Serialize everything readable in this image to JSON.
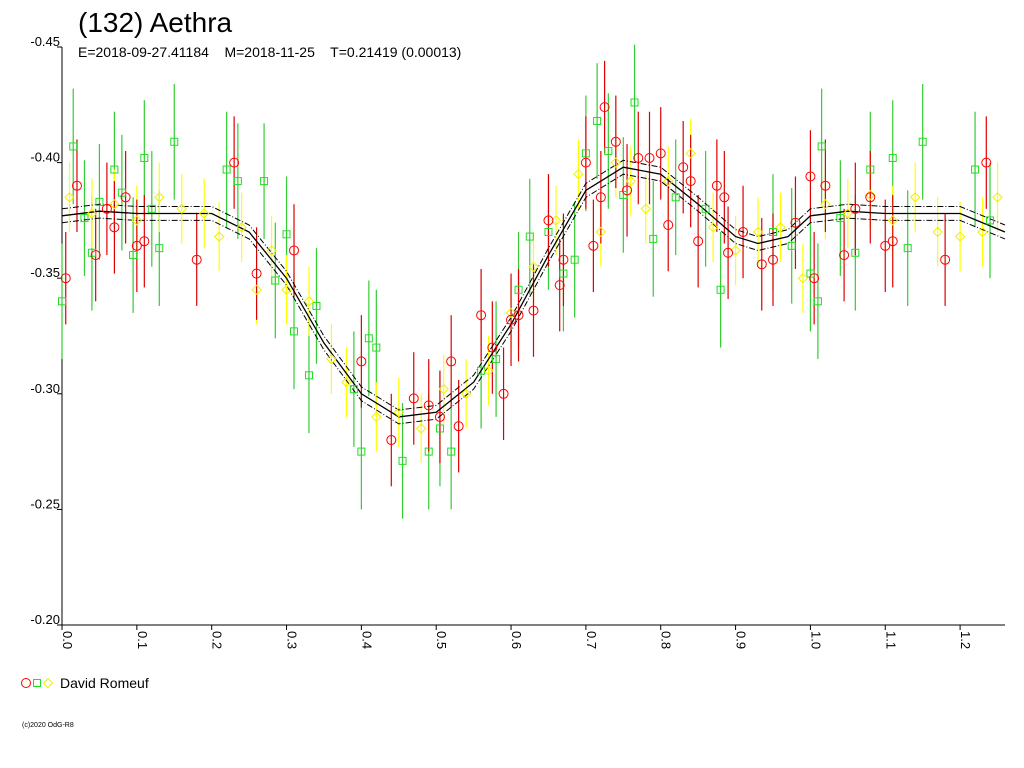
{
  "chart_data": {
    "type": "scatter",
    "title": "(132) Aethra",
    "subtitle": "E=2018-09-27.41184    M=2018-11-25    T=0.21419 (0.00013)",
    "legend": "David Romeuf",
    "footer": "(c)2020 OdG-R8",
    "xlim": [
      0,
      1.26
    ],
    "xticks": [
      {
        "value": 0,
        "label": "0.0"
      },
      0.1,
      0.2,
      0.3,
      0.4,
      0.5,
      0.6,
      0.7,
      0.8,
      0.9,
      {
        "value": 1,
        "label": "1.0"
      },
      1.1,
      1.2
    ],
    "ylim": [
      -0.2,
      -0.45
    ],
    "yticks": [
      -0.45,
      {
        "value": -0.4,
        "label": "-0.40"
      },
      -0.35,
      {
        "value": -0.3,
        "label": "-0.30"
      },
      -0.25,
      {
        "value": -0.2,
        "label": "-0.20"
      }
    ],
    "series": [
      {
        "marker": "square",
        "color": "#22dd22",
        "error_color": "#33cc33",
        "error": 0.025,
        "x": [
          0.0,
          0.015,
          0.03,
          0.04,
          0.05,
          0.07,
          0.08,
          0.095,
          0.11,
          0.12,
          0.13,
          0.15,
          0.22,
          0.235,
          0.27,
          0.285,
          0.3,
          0.31,
          0.33,
          0.34,
          0.39,
          0.4,
          0.41,
          0.42,
          0.455,
          0.49,
          0.505,
          0.52,
          0.56,
          0.58,
          0.61,
          0.625,
          0.65,
          0.67,
          0.685,
          0.7,
          0.715,
          0.73,
          0.75,
          0.765,
          0.79,
          0.82,
          0.86,
          0.88,
          0.95,
          0.975,
          1.0,
          1.01,
          1.015,
          1.04,
          1.06,
          1.08,
          1.11,
          1.13,
          1.15,
          1.22,
          1.24
        ],
        "values": [
          -0.34,
          -0.407,
          -0.376,
          -0.361,
          -0.383,
          -0.397,
          -0.387,
          -0.36,
          -0.402,
          -0.38,
          -0.363,
          -0.409,
          -0.397,
          -0.392,
          -0.392,
          -0.349,
          -0.369,
          -0.327,
          -0.308,
          -0.338,
          -0.302,
          -0.275,
          -0.324,
          -0.32,
          -0.271,
          -0.275,
          -0.285,
          -0.275,
          -0.31,
          -0.315,
          -0.345,
          -0.368,
          -0.37,
          -0.352,
          -0.358,
          -0.404,
          -0.418,
          -0.405,
          -0.386,
          -0.426,
          -0.367,
          -0.385,
          -0.38,
          -0.345,
          -0.37,
          -0.364,
          -0.352,
          -0.34,
          -0.407,
          -0.376,
          -0.361,
          -0.397,
          -0.402,
          -0.363,
          -0.409,
          -0.397,
          -0.375
        ]
      },
      {
        "marker": "diamond",
        "color": "#f0f000",
        "error_color": "#ffff00",
        "error": 0.015,
        "x": [
          0.01,
          0.04,
          0.07,
          0.1,
          0.13,
          0.16,
          0.19,
          0.21,
          0.24,
          0.26,
          0.28,
          0.3,
          0.33,
          0.36,
          0.38,
          0.42,
          0.45,
          0.48,
          0.51,
          0.54,
          0.57,
          0.6,
          0.63,
          0.66,
          0.69,
          0.72,
          0.74,
          0.76,
          0.78,
          0.81,
          0.84,
          0.87,
          0.9,
          0.93,
          0.96,
          0.99,
          1.02,
          1.05,
          1.08,
          1.11,
          1.14,
          1.17,
          1.2,
          1.23,
          1.25
        ],
        "values": [
          -0.385,
          -0.378,
          -0.382,
          -0.375,
          -0.385,
          -0.38,
          -0.378,
          -0.368,
          -0.372,
          -0.345,
          -0.362,
          -0.345,
          -0.34,
          -0.315,
          -0.305,
          -0.29,
          -0.292,
          -0.285,
          -0.302,
          -0.3,
          -0.31,
          -0.335,
          -0.355,
          -0.375,
          -0.395,
          -0.37,
          -0.4,
          -0.392,
          -0.38,
          -0.392,
          -0.404,
          -0.372,
          -0.362,
          -0.37,
          -0.372,
          -0.35,
          -0.382,
          -0.378,
          -0.386,
          -0.375,
          -0.385,
          -0.37,
          -0.368,
          -0.37,
          -0.385
        ]
      },
      {
        "marker": "circle",
        "color": "#ff0000",
        "error_color": "#dd0000",
        "error": 0.02,
        "x": [
          0.005,
          0.02,
          0.045,
          0.06,
          0.07,
          0.085,
          0.1,
          0.11,
          0.18,
          0.23,
          0.26,
          0.31,
          0.4,
          0.44,
          0.47,
          0.49,
          0.505,
          0.52,
          0.53,
          0.56,
          0.575,
          0.59,
          0.6,
          0.61,
          0.63,
          0.65,
          0.665,
          0.67,
          0.7,
          0.71,
          0.72,
          0.725,
          0.74,
          0.755,
          0.77,
          0.785,
          0.8,
          0.81,
          0.83,
          0.84,
          0.85,
          0.875,
          0.885,
          0.89,
          0.91,
          0.935,
          0.95,
          0.98,
          1.0,
          1.005,
          1.02,
          1.045,
          1.06,
          1.08,
          1.1,
          1.11,
          1.18,
          1.235
        ],
        "values": [
          -0.35,
          -0.39,
          -0.36,
          -0.38,
          -0.372,
          -0.385,
          -0.364,
          -0.366,
          -0.358,
          -0.4,
          -0.352,
          -0.362,
          -0.314,
          -0.28,
          -0.298,
          -0.295,
          -0.29,
          -0.314,
          -0.286,
          -0.334,
          -0.32,
          -0.3,
          -0.332,
          -0.334,
          -0.336,
          -0.375,
          -0.347,
          -0.358,
          -0.4,
          -0.364,
          -0.385,
          -0.424,
          -0.409,
          -0.388,
          -0.402,
          -0.402,
          -0.404,
          -0.373,
          -0.398,
          -0.392,
          -0.366,
          -0.39,
          -0.385,
          -0.361,
          -0.37,
          -0.356,
          -0.358,
          -0.374,
          -0.394,
          -0.35,
          -0.39,
          -0.36,
          -0.38,
          -0.385,
          -0.364,
          -0.366,
          -0.358,
          -0.4
        ]
      }
    ],
    "fit": {
      "color": "#000000",
      "band": 0.003,
      "x": [
        0.0,
        0.05,
        0.1,
        0.15,
        0.2,
        0.25,
        0.3,
        0.35,
        0.4,
        0.45,
        0.5,
        0.55,
        0.6,
        0.65,
        0.7,
        0.75,
        0.8,
        0.85,
        0.9,
        0.93,
        0.97,
        1.0,
        1.05,
        1.1,
        1.15,
        1.2,
        1.26
      ],
      "values": [
        -0.377,
        -0.379,
        -0.378,
        -0.378,
        -0.378,
        -0.37,
        -0.35,
        -0.322,
        -0.3,
        -0.29,
        -0.292,
        -0.305,
        -0.33,
        -0.36,
        -0.388,
        -0.398,
        -0.395,
        -0.382,
        -0.368,
        -0.365,
        -0.368,
        -0.377,
        -0.379,
        -0.378,
        -0.378,
        -0.378,
        -0.37
      ]
    }
  }
}
